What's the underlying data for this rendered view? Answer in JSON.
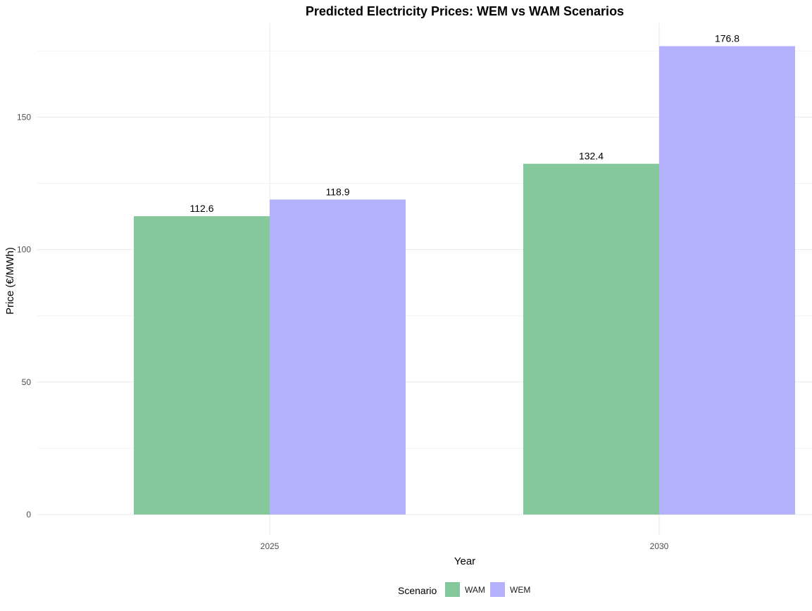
{
  "chart_data": {
    "type": "bar",
    "title": "Predicted Electricity Prices: WEM vs WAM Scenarios",
    "xlabel": "Year",
    "ylabel": "Price (€/MWh)",
    "categories": [
      "2025",
      "2030"
    ],
    "series": [
      {
        "name": "WAM",
        "values": [
          112.6,
          132.4
        ],
        "color": "#84c89c"
      },
      {
        "name": "WEM",
        "values": [
          118.9,
          176.8
        ],
        "color": "#b5b2fd"
      }
    ],
    "ylim": [
      -7.5,
      186
    ],
    "yticks": [
      0,
      50,
      100,
      150
    ],
    "grid": true,
    "legend": {
      "title": "Scenario",
      "position": "bottom"
    },
    "data_labels": true
  }
}
